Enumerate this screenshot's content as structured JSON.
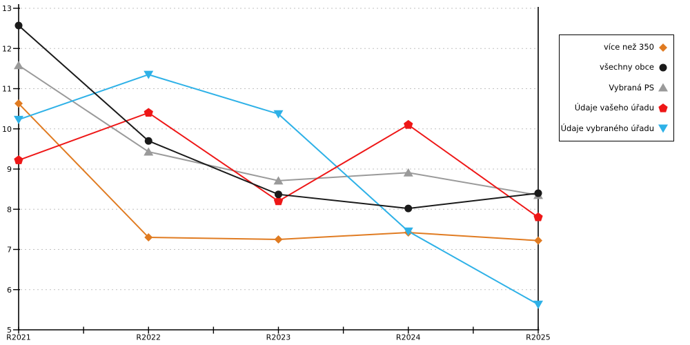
{
  "chart_data": {
    "type": "line",
    "title": "",
    "xlabel": "",
    "ylabel": "",
    "categories": [
      "R2021",
      "R2022",
      "R2023",
      "R2024",
      "R2025"
    ],
    "series": [
      {
        "name": "více než 350",
        "marker": "diamond",
        "color": "#E07B21",
        "values": [
          10.63,
          7.3,
          7.25,
          7.42,
          7.22
        ]
      },
      {
        "name": "všechny obce",
        "marker": "circle",
        "color": "#1A1A1A",
        "values": [
          12.57,
          9.7,
          8.37,
          8.02,
          8.4
        ]
      },
      {
        "name": "Vybraná PS",
        "marker": "triangle-up",
        "color": "#9A9A9A",
        "values": [
          11.58,
          9.43,
          8.71,
          8.91,
          8.35
        ]
      },
      {
        "name": "Údaje vašeho úřadu",
        "marker": "pentagon",
        "color": "#EE1717",
        "values": [
          9.22,
          10.4,
          8.2,
          10.1,
          7.8
        ]
      },
      {
        "name": "Údaje vybraného úřadu",
        "marker": "triangle-down",
        "color": "#2EB1E7",
        "values": [
          10.23,
          11.35,
          10.37,
          7.45,
          5.63
        ]
      }
    ],
    "ylim": [
      5,
      13
    ],
    "yticks": [
      5,
      6,
      7,
      8,
      9,
      10,
      11,
      12,
      13
    ],
    "grid": "horizontal-dashed",
    "gridline_color": "#BFBFBF",
    "axis_color": "#000000",
    "legend_position": "right",
    "draw_order": [
      0,
      2,
      4,
      3,
      1
    ]
  }
}
